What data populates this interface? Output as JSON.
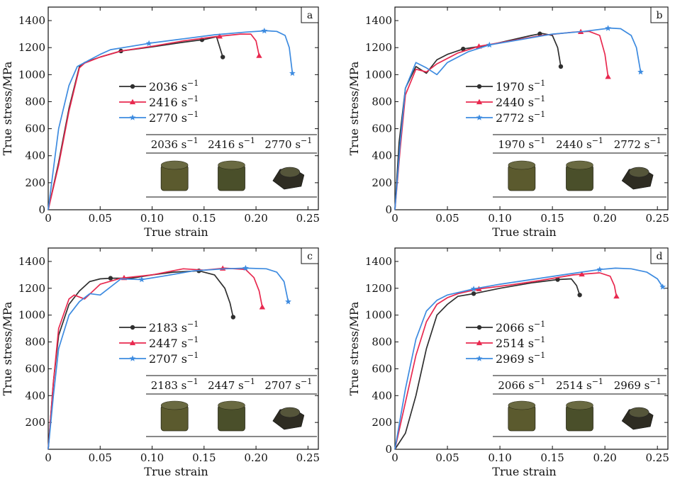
{
  "chart_data": [
    {
      "panel": "a",
      "type": "line",
      "xlabel": "True strain",
      "ylabel": "True stress/MPa",
      "xlim": [
        0,
        0.26
      ],
      "ylim": [
        0,
        1500
      ],
      "xticks": [
        0,
        0.05,
        0.1,
        0.15,
        0.2,
        0.25
      ],
      "xtick_labels": [
        "0",
        "0.05",
        "0.10",
        "0.15",
        "0.20",
        "0.25"
      ],
      "yticks": [
        0,
        200,
        400,
        600,
        800,
        1000,
        1200,
        1400
      ],
      "ytick_labels": [
        "0",
        "200",
        "400",
        "600",
        "800",
        "1000",
        "1200",
        "1400"
      ],
      "legend_position": "center-left",
      "table_header": [
        "2036 s⁻¹",
        "2416 s⁻¹",
        "2770 s⁻¹"
      ],
      "series": [
        {
          "name": "2036 s⁻¹",
          "color": "#2f2f2f",
          "marker": "circle",
          "x": [
            0,
            0.01,
            0.02,
            0.03,
            0.035,
            0.05,
            0.07,
            0.1,
            0.13,
            0.15,
            0.162,
            0.168
          ],
          "y": [
            0,
            350,
            750,
            1060,
            1090,
            1130,
            1175,
            1205,
            1240,
            1260,
            1280,
            1130
          ],
          "markers_at": [
            0.07,
            0.148,
            0.168
          ]
        },
        {
          "name": "2416 s⁻¹",
          "color": "#e8294f",
          "marker": "triangle",
          "x": [
            0,
            0.01,
            0.02,
            0.03,
            0.035,
            0.05,
            0.07,
            0.1,
            0.13,
            0.16,
            0.185,
            0.195,
            0.2,
            0.203
          ],
          "y": [
            0,
            330,
            730,
            1050,
            1085,
            1130,
            1175,
            1210,
            1250,
            1280,
            1300,
            1300,
            1250,
            1140
          ],
          "markers_at": [
            0.165,
            0.203
          ]
        },
        {
          "name": "2770 s⁻¹",
          "color": "#3d8be0",
          "marker": "star",
          "x": [
            0,
            0.005,
            0.01,
            0.02,
            0.028,
            0.04,
            0.05,
            0.06,
            0.08,
            0.1,
            0.13,
            0.16,
            0.19,
            0.21,
            0.22,
            0.228,
            0.232,
            0.235
          ],
          "y": [
            0,
            300,
            600,
            920,
            1060,
            1110,
            1150,
            1185,
            1210,
            1235,
            1265,
            1295,
            1315,
            1325,
            1320,
            1290,
            1200,
            1010
          ],
          "markers_at": [
            0.097,
            0.208,
            0.235
          ]
        }
      ]
    },
    {
      "panel": "b",
      "type": "line",
      "xlabel": "True strain",
      "ylabel": "True stress/MPa",
      "xlim": [
        0,
        0.26
      ],
      "ylim": [
        0,
        1500
      ],
      "xticks": [
        0,
        0.05,
        0.1,
        0.15,
        0.2,
        0.25
      ],
      "xtick_labels": [
        "0",
        "0.05",
        "0.10",
        "0.15",
        "0.20",
        "0.25"
      ],
      "yticks": [
        0,
        200,
        400,
        600,
        800,
        1000,
        1200,
        1400
      ],
      "ytick_labels": [
        "0",
        "200",
        "400",
        "600",
        "800",
        "1000",
        "1200",
        "1400"
      ],
      "legend_position": "center-left",
      "table_header": [
        "1970 s⁻¹",
        "2440 s⁻¹",
        "2772 s⁻¹"
      ],
      "series": [
        {
          "name": "1970 s⁻¹",
          "color": "#2f2f2f",
          "marker": "circle",
          "x": [
            0,
            0.004,
            0.01,
            0.02,
            0.03,
            0.04,
            0.05,
            0.065,
            0.09,
            0.11,
            0.13,
            0.14,
            0.15,
            0.155,
            0.158
          ],
          "y": [
            0,
            500,
            900,
            1060,
            1010,
            1110,
            1150,
            1190,
            1220,
            1255,
            1290,
            1305,
            1290,
            1200,
            1060
          ],
          "markers_at": [
            0.065,
            0.138,
            0.158
          ]
        },
        {
          "name": "2440 s⁻¹",
          "color": "#e8294f",
          "marker": "triangle",
          "x": [
            0,
            0.005,
            0.01,
            0.02,
            0.03,
            0.04,
            0.06,
            0.08,
            0.11,
            0.14,
            0.17,
            0.185,
            0.195,
            0.2,
            0.203
          ],
          "y": [
            0,
            450,
            850,
            1040,
            1020,
            1080,
            1160,
            1210,
            1250,
            1290,
            1315,
            1320,
            1290,
            1150,
            985
          ],
          "markers_at": [
            0.08,
            0.177,
            0.203
          ]
        },
        {
          "name": "2772 s⁻¹",
          "color": "#3d8be0",
          "marker": "star",
          "x": [
            0,
            0.005,
            0.01,
            0.02,
            0.03,
            0.04,
            0.05,
            0.07,
            0.09,
            0.12,
            0.15,
            0.18,
            0.205,
            0.215,
            0.225,
            0.23,
            0.234
          ],
          "y": [
            0,
            500,
            900,
            1090,
            1050,
            1000,
            1090,
            1170,
            1220,
            1260,
            1300,
            1320,
            1345,
            1340,
            1290,
            1200,
            1020
          ],
          "markers_at": [
            0.09,
            0.203,
            0.234
          ]
        }
      ]
    },
    {
      "panel": "c",
      "type": "line",
      "xlabel": "True strain",
      "ylabel": "True stress/MPa",
      "xlim": [
        0,
        0.26
      ],
      "ylim": [
        0,
        1500
      ],
      "xticks": [
        0,
        0.05,
        0.1,
        0.15,
        0.2,
        0.25
      ],
      "xtick_labels": [
        "0",
        "0.05",
        "0.10",
        "0.15",
        "0.20",
        "0.25"
      ],
      "yticks": [
        200,
        400,
        600,
        800,
        1000,
        1200,
        1400
      ],
      "ytick_labels": [
        "200",
        "400",
        "600",
        "800",
        "1000",
        "1200",
        "1400"
      ],
      "legend_position": "center-left",
      "table_header": [
        "2183 s⁻¹",
        "2447 s⁻¹",
        "2707 s⁻¹"
      ],
      "series": [
        {
          "name": "2183 s⁻¹",
          "color": "#2f2f2f",
          "marker": "circle",
          "x": [
            0,
            0.005,
            0.01,
            0.02,
            0.03,
            0.04,
            0.05,
            0.06,
            0.08,
            0.1,
            0.12,
            0.145,
            0.16,
            0.17,
            0.175,
            0.178
          ],
          "y": [
            0,
            500,
            850,
            1080,
            1180,
            1250,
            1270,
            1275,
            1275,
            1300,
            1320,
            1330,
            1300,
            1200,
            1090,
            985
          ],
          "markers_at": [
            0.06,
            0.145,
            0.178
          ]
        },
        {
          "name": "2447 s⁻¹",
          "color": "#e8294f",
          "marker": "triangle",
          "x": [
            0,
            0.005,
            0.01,
            0.02,
            0.025,
            0.035,
            0.05,
            0.07,
            0.1,
            0.13,
            0.15,
            0.17,
            0.19,
            0.198,
            0.203,
            0.206
          ],
          "y": [
            0,
            500,
            900,
            1120,
            1150,
            1120,
            1230,
            1275,
            1300,
            1345,
            1335,
            1350,
            1340,
            1280,
            1180,
            1060
          ],
          "markers_at": [
            0.073,
            0.168,
            0.206
          ]
        },
        {
          "name": "2707 s⁻¹",
          "color": "#3d8be0",
          "marker": "star",
          "x": [
            0,
            0.005,
            0.01,
            0.02,
            0.03,
            0.04,
            0.05,
            0.07,
            0.09,
            0.11,
            0.14,
            0.17,
            0.19,
            0.21,
            0.22,
            0.227,
            0.231
          ],
          "y": [
            0,
            400,
            750,
            1000,
            1100,
            1160,
            1150,
            1270,
            1265,
            1290,
            1330,
            1345,
            1350,
            1345,
            1320,
            1250,
            1100
          ],
          "markers_at": [
            0.09,
            0.19,
            0.231
          ]
        }
      ]
    },
    {
      "panel": "d",
      "type": "line",
      "xlabel": "True strain",
      "ylabel": "True stress/MPa",
      "xlim": [
        0,
        0.26
      ],
      "ylim": [
        0,
        1500
      ],
      "xticks": [
        0,
        0.05,
        0.1,
        0.15,
        0.2,
        0.25
      ],
      "xtick_labels": [
        "0",
        "0.05",
        "0.10",
        "0.15",
        "0.20",
        "0.25"
      ],
      "yticks": [
        0,
        200,
        400,
        600,
        800,
        1000,
        1200,
        1400
      ],
      "ytick_labels": [
        "0",
        "200",
        "400",
        "600",
        "800",
        "1000",
        "1200",
        "1400"
      ],
      "legend_position": "center-left",
      "table_header": [
        "2066 s⁻¹",
        "2514 s⁻¹",
        "2969 s⁻¹"
      ],
      "series": [
        {
          "name": "2066 s⁻¹",
          "color": "#2f2f2f",
          "marker": "circle",
          "x": [
            0,
            0.01,
            0.02,
            0.03,
            0.04,
            0.05,
            0.06,
            0.075,
            0.1,
            0.13,
            0.155,
            0.168,
            0.173,
            0.176
          ],
          "y": [
            0,
            120,
            400,
            750,
            1000,
            1080,
            1140,
            1160,
            1200,
            1240,
            1265,
            1270,
            1220,
            1150
          ],
          "markers_at": [
            0.075,
            0.155,
            0.176
          ]
        },
        {
          "name": "2514 s⁻¹",
          "color": "#e8294f",
          "marker": "triangle",
          "x": [
            0,
            0.01,
            0.02,
            0.03,
            0.04,
            0.05,
            0.06,
            0.08,
            0.11,
            0.14,
            0.17,
            0.195,
            0.205,
            0.209,
            0.211
          ],
          "y": [
            0,
            350,
            700,
            950,
            1080,
            1130,
            1160,
            1195,
            1225,
            1260,
            1300,
            1315,
            1290,
            1220,
            1140
          ],
          "markers_at": [
            0.08,
            0.178,
            0.211
          ]
        },
        {
          "name": "2969 s⁻¹",
          "color": "#3d8be0",
          "marker": "star",
          "x": [
            0,
            0.01,
            0.02,
            0.03,
            0.04,
            0.05,
            0.075,
            0.1,
            0.13,
            0.16,
            0.195,
            0.21,
            0.225,
            0.24,
            0.25,
            0.255
          ],
          "y": [
            0,
            450,
            820,
            1030,
            1110,
            1150,
            1195,
            1230,
            1265,
            1300,
            1340,
            1350,
            1345,
            1320,
            1270,
            1210
          ],
          "markers_at": [
            0.075,
            0.195,
            0.255
          ]
        }
      ]
    }
  ]
}
